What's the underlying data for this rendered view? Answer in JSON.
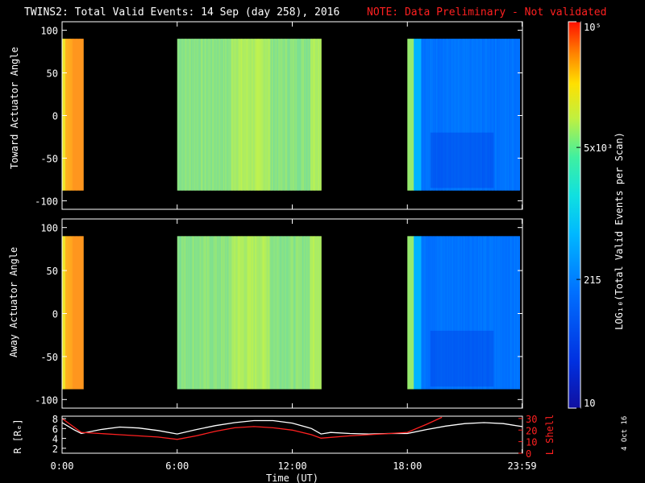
{
  "header": {
    "title": "TWINS2: Total Valid Events: 14 Sep (day 258), 2016",
    "note": "NOTE: Data Preliminary - Not validated"
  },
  "footer": {
    "stamp": "4 Oct 16"
  },
  "colors": {
    "background": "#000000",
    "axes": "#ffffff",
    "note": "#ff2020",
    "lshell": "#ff2020",
    "radius": "#ffffff"
  },
  "chart_data": [
    {
      "type": "heatmap",
      "ylabel": "Toward Actuator Angle",
      "ylim": [
        -110,
        110
      ],
      "yticks": [
        "100",
        "50",
        "0",
        "-50",
        "-100"
      ],
      "ytick_values": [
        100,
        50,
        0,
        -50,
        -100
      ],
      "angle_range": [
        -88,
        90
      ],
      "xlim_hours": [
        0,
        24
      ],
      "data_intervals_hours": [
        [
          0.0,
          1.1
        ],
        [
          6.0,
          13.5
        ],
        [
          18.0,
          23.85
        ]
      ]
    },
    {
      "type": "heatmap",
      "ylabel": "Away Actuator Angle",
      "ylim": [
        -110,
        110
      ],
      "yticks": [
        "100",
        "50",
        "0",
        "-50",
        "-100"
      ],
      "ytick_values": [
        100,
        50,
        0,
        -50,
        -100
      ],
      "angle_range": [
        -88,
        90
      ],
      "xlim_hours": [
        0,
        24
      ],
      "data_intervals_hours": [
        [
          0.0,
          1.1
        ],
        [
          6.0,
          13.5
        ],
        [
          18.0,
          23.85
        ]
      ]
    },
    {
      "type": "line",
      "ylabel_left": "R [Rₑ]",
      "ylabel_right": "L Shell",
      "xlabel": "Time (UT)",
      "xticks": [
        "0:00",
        "6:00",
        "12:00",
        "18:00",
        "23:59"
      ],
      "xtick_hours": [
        0,
        6,
        12,
        18,
        23.98
      ],
      "left_ylim": [
        1,
        8.5
      ],
      "left_yticks": [
        "2",
        "4",
        "6",
        "8"
      ],
      "left_ytick_values": [
        2,
        4,
        6,
        8
      ],
      "right_ylim": [
        0,
        32
      ],
      "right_yticks": [
        "0",
        "10",
        "20",
        "30"
      ],
      "right_ytick_values": [
        0,
        10,
        20,
        30
      ],
      "series": [
        {
          "axis": "left",
          "x": [
            0,
            0.6,
            1.0,
            2,
            3,
            4,
            5,
            6,
            7,
            8,
            9,
            10,
            11,
            12,
            13,
            13.5,
            14,
            15,
            16,
            17,
            18,
            19,
            20,
            21,
            22,
            23,
            23.98
          ],
          "values": [
            7.2,
            5.8,
            5.0,
            5.8,
            6.3,
            6.1,
            5.6,
            4.9,
            5.8,
            6.6,
            7.2,
            7.6,
            7.6,
            7.1,
            6.0,
            4.9,
            5.2,
            5.0,
            4.9,
            5.0,
            5.0,
            5.8,
            6.5,
            7.0,
            7.2,
            7.0,
            6.4
          ]
        },
        {
          "axis": "right",
          "x": [
            0,
            0.5,
            1.0,
            3,
            5,
            6,
            7,
            8,
            9,
            10,
            11,
            12,
            13,
            13.5,
            15,
            17,
            18,
            19,
            19.8
          ],
          "values": [
            30,
            24,
            18,
            16,
            14,
            12,
            15,
            19,
            22,
            23,
            22,
            20,
            16,
            13,
            15,
            17,
            18,
            25,
            31
          ]
        }
      ]
    },
    {
      "type": "colorbar",
      "label": "LOG₁₀(Total Valid Events per Scan)",
      "scale": "log",
      "range": [
        10,
        100000
      ],
      "tick_labels": [
        "10",
        "215",
        "5x10³",
        "10⁵"
      ],
      "tick_values": [
        10,
        215,
        5000,
        100000
      ]
    }
  ]
}
